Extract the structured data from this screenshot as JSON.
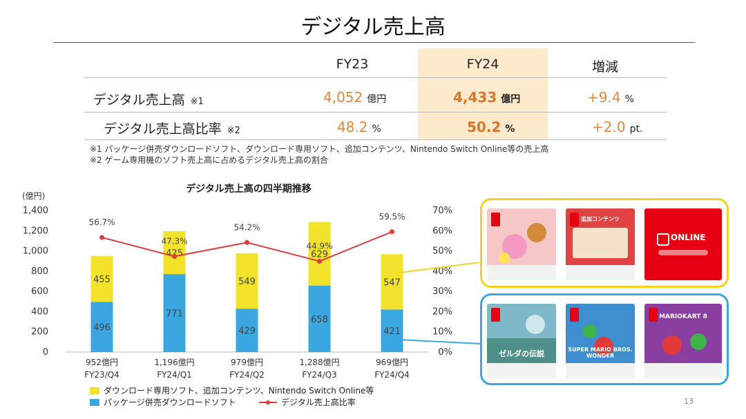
{
  "title": "デジタル売上高",
  "table": {
    "headers": [
      "FY23",
      "FY24",
      "増減"
    ],
    "rows": [
      {
        "label": "デジタル売上高",
        "note": "※1",
        "fy23": "4,052",
        "fy23_unit": "億円",
        "fy24": "4,433",
        "fy24_unit": "億円",
        "diff": "+9.4",
        "diff_unit": "%"
      },
      {
        "label": "デジタル売上高比率",
        "note": "※2",
        "fy23": "48.2",
        "fy23_unit": "%",
        "fy24": "50.2",
        "fy24_unit": "%",
        "diff": "+2.0",
        "diff_unit": "pt."
      }
    ]
  },
  "footnotes": [
    "※1 パッケージ併売ダウンロードソフト、ダウンロード専用ソフト、追加コンテンツ、Nintendo Switch Online等の売上高",
    "※2 ゲーム専用機のソフト売上高に占めるデジタル売上高の割合"
  ],
  "chart_data": {
    "type": "bar",
    "title": "デジタル売上高の四半期推移",
    "ylabel": "(億円)",
    "ylim": [
      0,
      1400
    ],
    "yticks": [
      "0",
      "200",
      "400",
      "600",
      "800",
      "1,000",
      "1,200",
      "1,400"
    ],
    "y2lim": [
      0,
      70
    ],
    "y2ticks": [
      "0%",
      "10%",
      "20%",
      "30%",
      "40%",
      "50%",
      "60%",
      "70%"
    ],
    "categories": [
      "FY23/Q4",
      "FY24/Q1",
      "FY24/Q2",
      "FY24/Q3",
      "FY24/Q4"
    ],
    "totals": [
      "952億円",
      "1,196億円",
      "979億円",
      "1,288億円",
      "969億円"
    ],
    "series": [
      {
        "name": "パッケージ併売ダウンロードソフト",
        "type": "stacked-bar",
        "color": "#3aa7e0",
        "values": [
          496,
          771,
          429,
          658,
          421
        ]
      },
      {
        "name": "ダウンロード専用ソフト、追加コンテンツ、Nintendo Switch Online等",
        "type": "stacked-bar",
        "color": "#f2e22a",
        "values": [
          455,
          425,
          549,
          629,
          547
        ]
      },
      {
        "name": "デジタル売上高比率",
        "type": "line",
        "axis": "right",
        "color": "#e03a3a",
        "values": [
          56.7,
          47.3,
          54.2,
          44.9,
          59.5
        ],
        "labels": [
          "56.7%",
          "47.3%",
          "54.2%",
          "44.9%",
          "59.5%"
        ]
      }
    ],
    "legend_position": "bottom-left",
    "grid": false
  },
  "panels": {
    "top_cards": [
      {
        "icon": "kirby-game-card-icon",
        "bg": "#f6c7c7"
      },
      {
        "icon": "zelda-dlc-card-icon",
        "bg": "#e04343",
        "label": "追加コンテンツ"
      },
      {
        "icon": "switch-online-card-icon",
        "bg": "#e60012",
        "label": "ONLINE"
      }
    ],
    "bottom_cards": [
      {
        "icon": "zelda-game-card-icon",
        "bg": "#7fb8c9",
        "label": "ゼルダの伝説"
      },
      {
        "icon": "mario-wonder-card-icon",
        "bg": "#3f8fd0",
        "label": "SUPER MARIO BROS. WONDER"
      },
      {
        "icon": "mariokart-card-icon",
        "bg": "#8a3fa0",
        "label": "MARIOKART 8"
      }
    ],
    "top_color": "#f2d321",
    "bottom_color": "#3aa7e0"
  },
  "page_number": "13"
}
